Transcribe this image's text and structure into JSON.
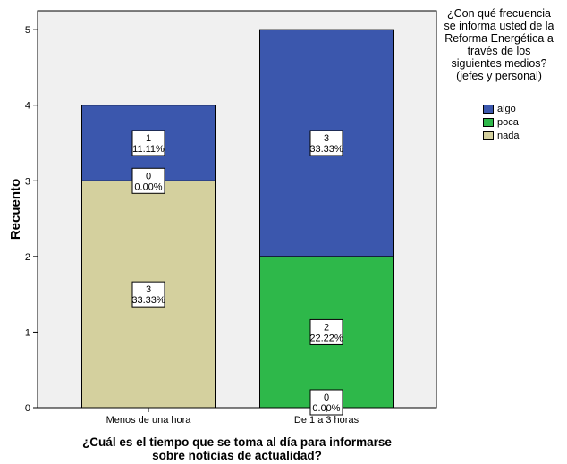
{
  "chart_data": {
    "type": "bar",
    "stacked": true,
    "categories": [
      "Menos de una hora",
      "De 1 a 3 horas"
    ],
    "xlabel": [
      "¿Cuál es el tiempo que se toma al día para informarse",
      "sobre noticias de actualidad?"
    ],
    "ylabel": "Recuento",
    "ylim": [
      0,
      5.25
    ],
    "yticks": [
      0,
      1,
      2,
      3,
      4,
      5
    ],
    "grid": false,
    "legend": {
      "title_lines": [
        "¿Con qué frecuencia",
        "se informa usted de la",
        "Reforma Energética a",
        "través de los",
        "siguientes medios?",
        "(jefes y personal)"
      ],
      "placement": "right"
    },
    "series": [
      {
        "name": "nada",
        "color": "#d4d09e",
        "values": [
          3,
          0
        ],
        "labels": [
          [
            "3",
            "33.33%"
          ],
          [
            "",
            ""
          ]
        ]
      },
      {
        "name": "poca",
        "color": "#2eb84a",
        "values": [
          0,
          2
        ],
        "labels": [
          [
            "0",
            "0.00%"
          ],
          [
            "2",
            "22.22%"
          ]
        ]
      },
      {
        "name": "algo",
        "color": "#3b57ad",
        "values": [
          1,
          3
        ],
        "labels": [
          [
            "1",
            "11.11%"
          ],
          [
            "3",
            "33.33%"
          ]
        ]
      }
    ],
    "extra_labels": [
      {
        "category": 1,
        "series": "nada",
        "text": [
          "0",
          "0.00%"
        ]
      }
    ],
    "legend_order": [
      "algo",
      "poca",
      "nada"
    ],
    "plot_background": "#f0f0f0"
  }
}
